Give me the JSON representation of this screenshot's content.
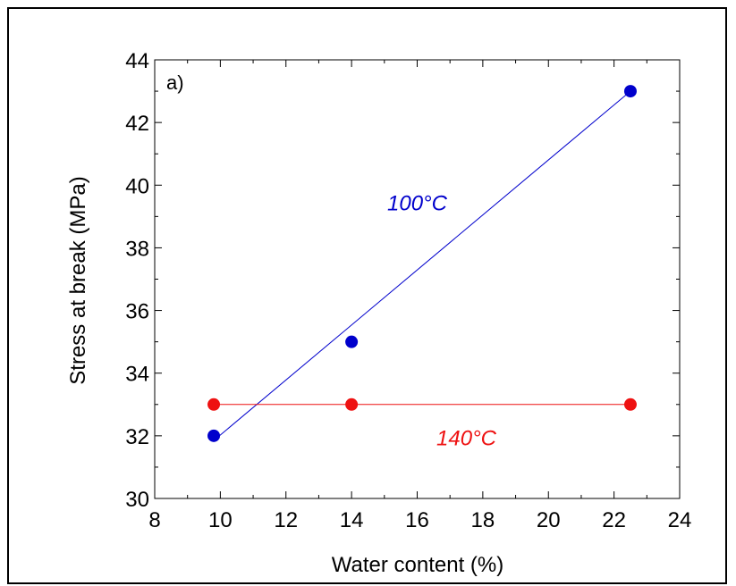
{
  "chart_data": {
    "type": "scatter",
    "panel_label": "a)",
    "xlabel": "Water content (%)",
    "ylabel": "Stress at break (MPa)",
    "xlim": [
      8,
      24
    ],
    "ylim": [
      30,
      44
    ],
    "x_ticks": [
      8,
      10,
      12,
      14,
      16,
      18,
      20,
      22,
      24
    ],
    "y_ticks": [
      30,
      32,
      34,
      36,
      38,
      40,
      42,
      44
    ],
    "grid": false,
    "series": [
      {
        "name": "100°C",
        "color": "#0000cc",
        "points": [
          {
            "x": 9.8,
            "y": 32.0
          },
          {
            "x": 14.0,
            "y": 35.0
          },
          {
            "x": 22.5,
            "y": 43.0
          }
        ],
        "fit_line": [
          {
            "x": 9.8,
            "y": 31.85
          },
          {
            "x": 22.5,
            "y": 43.0
          }
        ]
      },
      {
        "name": "140°C",
        "color": "#ee1111",
        "points": [
          {
            "x": 9.8,
            "y": 33.0
          },
          {
            "x": 14.0,
            "y": 33.0
          },
          {
            "x": 22.5,
            "y": 33.0
          }
        ],
        "fit_line": [
          {
            "x": 9.8,
            "y": 33.0
          },
          {
            "x": 22.5,
            "y": 33.0
          }
        ]
      }
    ],
    "annotations": [
      {
        "text": "100°C",
        "color": "#0000cc",
        "x": 16.0,
        "y": 39.2
      },
      {
        "text": "140°C",
        "color": "#ee1111",
        "x": 17.5,
        "y": 31.7
      }
    ]
  }
}
